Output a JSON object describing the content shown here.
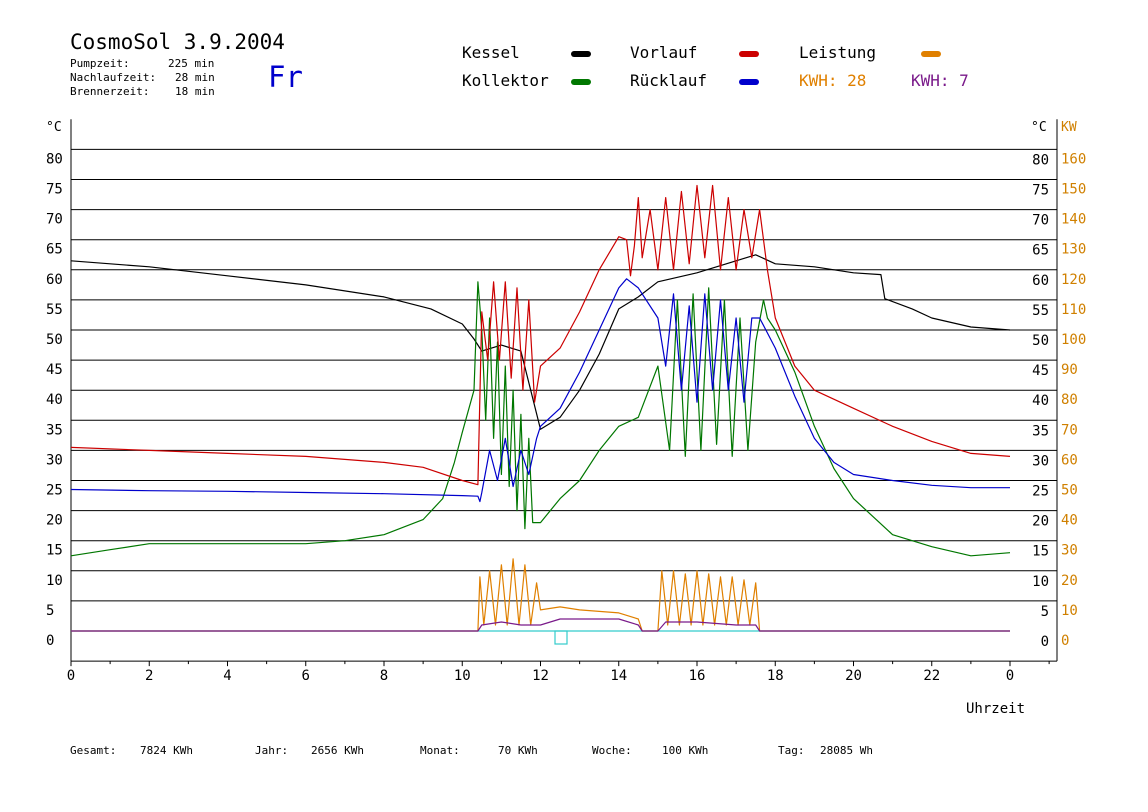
{
  "header": {
    "title": "CosmoSol 3.9.2004",
    "day": "Fr",
    "stats": [
      {
        "label": "Pumpzeit:",
        "value": "225 min"
      },
      {
        "label": "Nachlaufzeit:",
        "value": "28 min"
      },
      {
        "label": "Brennerzeit:",
        "value": "18 min"
      }
    ]
  },
  "legend": {
    "kessel": "Kessel",
    "kollektor": "Kollektor",
    "vorlauf": "Vorlauf",
    "ruecklauf": "Rücklauf",
    "leistung": "Leistung",
    "kwh_orange": "KWH: 28",
    "kwh_purple": "KWH: 7"
  },
  "axis": {
    "left_unit": "°C",
    "right_unit": "°C",
    "right_kw_unit": "KW",
    "xlabel": "Uhrzeit"
  },
  "colors": {
    "kessel": "#000000",
    "kollektor": "#007700",
    "vorlauf": "#cc0000",
    "ruecklauf": "#0000cc",
    "leistung": "#e08000",
    "purple": "#7a1a8a",
    "baseline": "#33cccc",
    "kw_axis": "#d08000"
  },
  "footer": {
    "gesamt_label": "Gesamt:",
    "gesamt_value": "7824 KWh",
    "jahr_label": "Jahr:",
    "jahr_value": "2656 KWh",
    "monat_label": "Monat:",
    "monat_value": "70 KWh",
    "woche_label": "Woche:",
    "woche_value": "100 KWh",
    "tag_label": "Tag:",
    "tag_value": "28085 Wh"
  },
  "chart_data": {
    "type": "line",
    "xlabel": "Uhrzeit",
    "ylabel": "°C",
    "y2label": "KW",
    "xlim": [
      0,
      24
    ],
    "ylim": [
      -5,
      85
    ],
    "y2lim": [
      -10,
      170
    ],
    "grid": true,
    "x_ticks": [
      "0",
      "2",
      "4",
      "6",
      "8",
      "10",
      "12",
      "14",
      "16",
      "18",
      "20",
      "22",
      "0"
    ],
    "y_ticks": [
      0,
      5,
      10,
      15,
      20,
      25,
      30,
      35,
      40,
      45,
      50,
      55,
      60,
      65,
      70,
      75,
      80
    ],
    "y2_ticks": [
      0,
      10,
      20,
      30,
      40,
      50,
      60,
      70,
      80,
      90,
      100,
      110,
      120,
      130,
      140,
      150,
      160
    ],
    "series": [
      {
        "name": "Kessel",
        "key": "kessel",
        "points": [
          [
            0,
            61.5
          ],
          [
            2,
            60.5
          ],
          [
            4,
            59
          ],
          [
            6,
            57.5
          ],
          [
            8,
            55.5
          ],
          [
            9.2,
            53.5
          ],
          [
            10,
            51
          ],
          [
            10.3,
            48.5
          ],
          [
            10.5,
            46.5
          ],
          [
            11,
            47.5
          ],
          [
            11.5,
            46.5
          ],
          [
            12,
            33.5
          ],
          [
            12.5,
            35.5
          ],
          [
            13,
            40
          ],
          [
            13.5,
            46
          ],
          [
            14,
            53.5
          ],
          [
            14.5,
            55.5
          ],
          [
            15,
            58
          ],
          [
            16,
            59.5
          ],
          [
            17,
            61.5
          ],
          [
            17.5,
            62.5
          ],
          [
            18,
            61
          ],
          [
            19,
            60.5
          ],
          [
            20,
            59.5
          ],
          [
            20.7,
            59.2
          ],
          [
            20.8,
            55.2
          ],
          [
            21.5,
            53.5
          ],
          [
            22,
            52
          ],
          [
            23,
            50.5
          ],
          [
            24,
            50
          ]
        ]
      },
      {
        "name": "Kollektor",
        "key": "kollektor",
        "points": [
          [
            0,
            12.5
          ],
          [
            1,
            13.5
          ],
          [
            2,
            14.5
          ],
          [
            4,
            14.5
          ],
          [
            6,
            14.5
          ],
          [
            7,
            15
          ],
          [
            8,
            16
          ],
          [
            9,
            18.5
          ],
          [
            9.5,
            22
          ],
          [
            9.8,
            28
          ],
          [
            10,
            33
          ],
          [
            10.3,
            40
          ],
          [
            10.4,
            58
          ],
          [
            10.5,
            50
          ],
          [
            10.6,
            35
          ],
          [
            10.7,
            52
          ],
          [
            10.8,
            32
          ],
          [
            10.9,
            48
          ],
          [
            11,
            26
          ],
          [
            11.1,
            44
          ],
          [
            11.2,
            24
          ],
          [
            11.3,
            40
          ],
          [
            11.4,
            20
          ],
          [
            11.5,
            36
          ],
          [
            11.6,
            17
          ],
          [
            11.7,
            32
          ],
          [
            11.8,
            18
          ],
          [
            12,
            18
          ],
          [
            12.5,
            22
          ],
          [
            13,
            25
          ],
          [
            13.5,
            30
          ],
          [
            14,
            34
          ],
          [
            14.5,
            35.5
          ],
          [
            15,
            44
          ],
          [
            15.3,
            30
          ],
          [
            15.5,
            55
          ],
          [
            15.7,
            29
          ],
          [
            15.9,
            56
          ],
          [
            16.1,
            30
          ],
          [
            16.3,
            57
          ],
          [
            16.5,
            31
          ],
          [
            16.7,
            55
          ],
          [
            16.9,
            29
          ],
          [
            17.1,
            52
          ],
          [
            17.3,
            30
          ],
          [
            17.5,
            48
          ],
          [
            17.7,
            55
          ],
          [
            17.8,
            52
          ],
          [
            18,
            50
          ],
          [
            18.5,
            43
          ],
          [
            19,
            34
          ],
          [
            19.5,
            27
          ],
          [
            20,
            22
          ],
          [
            21,
            16
          ],
          [
            22,
            14
          ],
          [
            23,
            12.5
          ],
          [
            24,
            13
          ]
        ]
      },
      {
        "name": "Vorlauf",
        "key": "vorlauf",
        "points": [
          [
            0,
            30.5
          ],
          [
            2,
            30
          ],
          [
            4,
            29.5
          ],
          [
            6,
            29
          ],
          [
            8,
            28
          ],
          [
            9,
            27.2
          ],
          [
            10,
            25
          ],
          [
            10.4,
            24.3
          ],
          [
            10.5,
            53
          ],
          [
            10.65,
            45
          ],
          [
            10.8,
            58
          ],
          [
            10.95,
            45
          ],
          [
            11.1,
            58
          ],
          [
            11.25,
            42
          ],
          [
            11.4,
            57
          ],
          [
            11.55,
            40
          ],
          [
            11.7,
            55
          ],
          [
            11.85,
            38
          ],
          [
            12,
            44
          ],
          [
            12.5,
            47
          ],
          [
            13,
            53
          ],
          [
            13.5,
            60
          ],
          [
            14,
            65.5
          ],
          [
            14.2,
            65
          ],
          [
            14.3,
            59
          ],
          [
            14.4,
            64
          ],
          [
            14.5,
            72
          ],
          [
            14.6,
            62
          ],
          [
            14.8,
            70
          ],
          [
            15,
            60
          ],
          [
            15.2,
            72
          ],
          [
            15.4,
            60
          ],
          [
            15.6,
            73
          ],
          [
            15.8,
            61
          ],
          [
            16,
            74
          ],
          [
            16.2,
            62
          ],
          [
            16.4,
            74
          ],
          [
            16.6,
            60
          ],
          [
            16.8,
            72
          ],
          [
            17,
            60
          ],
          [
            17.2,
            70
          ],
          [
            17.4,
            62
          ],
          [
            17.6,
            70
          ],
          [
            17.8,
            60
          ],
          [
            18,
            52
          ],
          [
            18.5,
            44
          ],
          [
            19,
            40
          ],
          [
            20,
            37
          ],
          [
            21,
            34
          ],
          [
            22,
            31.5
          ],
          [
            23,
            29.5
          ],
          [
            24,
            29
          ]
        ]
      },
      {
        "name": "Rücklauf",
        "key": "ruecklauf",
        "points": [
          [
            0,
            23.5
          ],
          [
            2,
            23.3
          ],
          [
            4,
            23.2
          ],
          [
            6,
            23
          ],
          [
            8,
            22.8
          ],
          [
            10,
            22.5
          ],
          [
            10.4,
            22.4
          ],
          [
            10.45,
            21.5
          ],
          [
            10.5,
            23
          ],
          [
            10.7,
            30
          ],
          [
            10.9,
            25
          ],
          [
            11.1,
            32
          ],
          [
            11.3,
            24
          ],
          [
            11.5,
            30
          ],
          [
            11.7,
            26
          ],
          [
            11.9,
            32
          ],
          [
            12,
            34
          ],
          [
            12.5,
            37
          ],
          [
            13,
            43
          ],
          [
            13.5,
            50
          ],
          [
            14,
            57
          ],
          [
            14.2,
            58.5
          ],
          [
            14.5,
            57
          ],
          [
            15,
            52
          ],
          [
            15.2,
            44
          ],
          [
            15.4,
            56
          ],
          [
            15.6,
            40
          ],
          [
            15.8,
            54
          ],
          [
            16,
            38
          ],
          [
            16.2,
            56
          ],
          [
            16.4,
            40
          ],
          [
            16.6,
            55
          ],
          [
            16.8,
            40
          ],
          [
            17,
            52
          ],
          [
            17.2,
            38
          ],
          [
            17.4,
            52
          ],
          [
            17.6,
            52
          ],
          [
            18,
            47
          ],
          [
            18.5,
            39
          ],
          [
            19,
            32
          ],
          [
            19.5,
            28
          ],
          [
            20,
            26
          ],
          [
            21,
            25
          ],
          [
            22,
            24.2
          ],
          [
            23,
            23.8
          ],
          [
            24,
            23.8
          ]
        ]
      },
      {
        "name": "Leistung",
        "key": "leistung",
        "axis": "KW",
        "points": [
          [
            0,
            0
          ],
          [
            10.4,
            0
          ],
          [
            10.45,
            18
          ],
          [
            10.55,
            2
          ],
          [
            10.7,
            20
          ],
          [
            10.85,
            2
          ],
          [
            11,
            22
          ],
          [
            11.15,
            2
          ],
          [
            11.3,
            24
          ],
          [
            11.45,
            2
          ],
          [
            11.6,
            22
          ],
          [
            11.75,
            2
          ],
          [
            11.9,
            16
          ],
          [
            12,
            7
          ],
          [
            12.5,
            8
          ],
          [
            13,
            7
          ],
          [
            14,
            6
          ],
          [
            14.5,
            4
          ],
          [
            14.6,
            0
          ],
          [
            15,
            0
          ],
          [
            15.1,
            20
          ],
          [
            15.25,
            2
          ],
          [
            15.4,
            20
          ],
          [
            15.55,
            2
          ],
          [
            15.7,
            19
          ],
          [
            15.85,
            2
          ],
          [
            16,
            20
          ],
          [
            16.15,
            2
          ],
          [
            16.3,
            19
          ],
          [
            16.45,
            2
          ],
          [
            16.6,
            18
          ],
          [
            16.75,
            2
          ],
          [
            16.9,
            18
          ],
          [
            17.05,
            2
          ],
          [
            17.2,
            17
          ],
          [
            17.35,
            2
          ],
          [
            17.5,
            16
          ],
          [
            17.6,
            0
          ],
          [
            24,
            0
          ]
        ]
      },
      {
        "key": "purple",
        "axis": "KW",
        "points": [
          [
            0,
            0
          ],
          [
            10.4,
            0
          ],
          [
            10.5,
            2
          ],
          [
            11,
            3
          ],
          [
            11.5,
            2
          ],
          [
            12,
            2
          ],
          [
            12.5,
            4
          ],
          [
            13,
            4
          ],
          [
            14,
            4
          ],
          [
            14.5,
            2
          ],
          [
            14.6,
            0
          ],
          [
            15,
            0
          ],
          [
            15.2,
            3
          ],
          [
            16,
            3
          ],
          [
            17,
            2
          ],
          [
            17.5,
            2
          ],
          [
            17.6,
            0
          ],
          [
            24,
            0
          ]
        ]
      }
    ]
  }
}
